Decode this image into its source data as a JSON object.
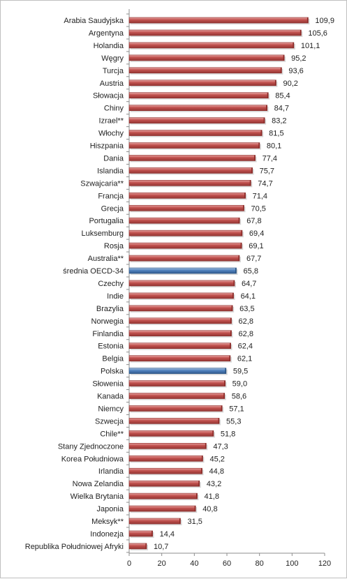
{
  "chart_data": {
    "type": "bar",
    "orientation": "horizontal",
    "categories": [
      "Arabia Saudyjska",
      "Argentyna",
      "Holandia",
      "Węgry",
      "Turcja",
      "Austria",
      "Słowacja",
      "Chiny",
      "Izrael**",
      "Włochy",
      "Hiszpania",
      "Dania",
      "Islandia",
      "Szwajcaria**",
      "Francja",
      "Grecja",
      "Portugalia",
      "Luksemburg",
      "Rosja",
      "Australia**",
      "średnia OECD-34",
      "Czechy",
      "Indie",
      "Brazylia",
      "Norwegia",
      "Finlandia",
      "Estonia",
      "Belgia",
      "Polska",
      "Słowenia",
      "Kanada",
      "Niemcy",
      "Szwecja",
      "Chile**",
      "Stany Zjednoczone",
      "Korea Południowa",
      "Irlandia",
      "Nowa Zelandia",
      "Wielka Brytania",
      "Japonia",
      "Meksyk**",
      "Indonezja",
      "Republika Południowej Afryki"
    ],
    "values": [
      109.9,
      105.6,
      101.1,
      95.2,
      93.6,
      90.2,
      85.4,
      84.7,
      83.2,
      81.5,
      80.1,
      77.4,
      75.7,
      74.7,
      71.4,
      70.5,
      67.8,
      69.4,
      69.1,
      67.7,
      65.8,
      64.7,
      64.1,
      63.5,
      62.8,
      62.8,
      62.4,
      62.1,
      59.5,
      59.0,
      58.6,
      57.1,
      55.3,
      51.8,
      47.3,
      45.2,
      44.8,
      43.2,
      41.8,
      40.8,
      31.5,
      14.4,
      10.7
    ],
    "value_labels": [
      "109,9",
      "105,6",
      "101,1",
      "95,2",
      "93,6",
      "90,2",
      "85,4",
      "84,7",
      "83,2",
      "81,5",
      "80,1",
      "77,4",
      "75,7",
      "74,7",
      "71,4",
      "70,5",
      "67,8",
      "69,4",
      "69,1",
      "67,7",
      "65,8",
      "64,7",
      "64,1",
      "63,5",
      "62,8",
      "62,8",
      "62,4",
      "62,1",
      "59,5",
      "59,0",
      "58,6",
      "57,1",
      "55,3",
      "51,8",
      "47,3",
      "45,2",
      "44,8",
      "43,2",
      "41,8",
      "40,8",
      "31,5",
      "14,4",
      "10,7"
    ],
    "highlighted": [
      "średnia OECD-34",
      "Polska"
    ],
    "xlim": [
      0,
      120
    ],
    "xticks": [
      0,
      20,
      40,
      60,
      80,
      100,
      120
    ],
    "grid": false,
    "title": "",
    "xlabel": "",
    "ylabel": "",
    "colors": {
      "default": "#c0504d",
      "highlight": "#4f81bd",
      "default_dark": "#8c2b28",
      "highlight_dark": "#2c5685"
    }
  }
}
